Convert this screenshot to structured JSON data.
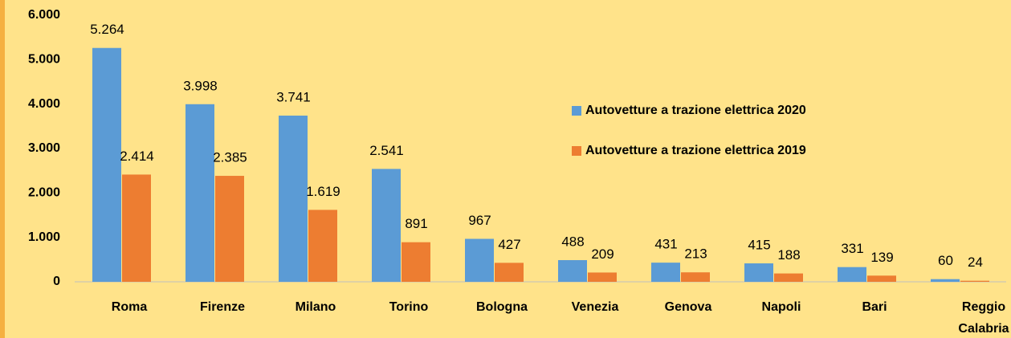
{
  "chart_data": {
    "type": "bar",
    "categories": [
      "Roma",
      "Firenze",
      "Milano",
      "Torino",
      "Bologna",
      "Venezia",
      "Genova",
      "Napoli",
      "Bari",
      "Reggio Calabria"
    ],
    "series": [
      {
        "name": "Autovetture a trazione elettrica 2020",
        "color": "#5b9bd5",
        "values": [
          5264,
          3998,
          3741,
          2541,
          967,
          488,
          431,
          415,
          331,
          60
        ],
        "value_labels": [
          "5.264",
          "3.998",
          "3.741",
          "2.541",
          "967",
          "488",
          "431",
          "415",
          "331",
          "60"
        ]
      },
      {
        "name": "Autovetture a trazione elettrica 2019",
        "color": "#ed7d31",
        "values": [
          2414,
          2385,
          1619,
          891,
          427,
          209,
          213,
          188,
          139,
          24
        ],
        "value_labels": [
          "2.414",
          "2.385",
          "1.619",
          "891",
          "427",
          "209",
          "213",
          "188",
          "139",
          "24"
        ]
      }
    ],
    "ylim": [
      0,
      6000
    ],
    "yticks": [
      0,
      {
        "value": 1000,
        "label": "1.000"
      },
      {
        "value": 2000,
        "label": "2.000"
      },
      {
        "value": 3000,
        "label": "3.000"
      },
      {
        "value": 4000,
        "label": "4.000"
      },
      {
        "value": 5000,
        "label": "5.000"
      },
      {
        "value": 6000,
        "label": "6.000"
      }
    ],
    "grid": false,
    "legend": "center right"
  }
}
